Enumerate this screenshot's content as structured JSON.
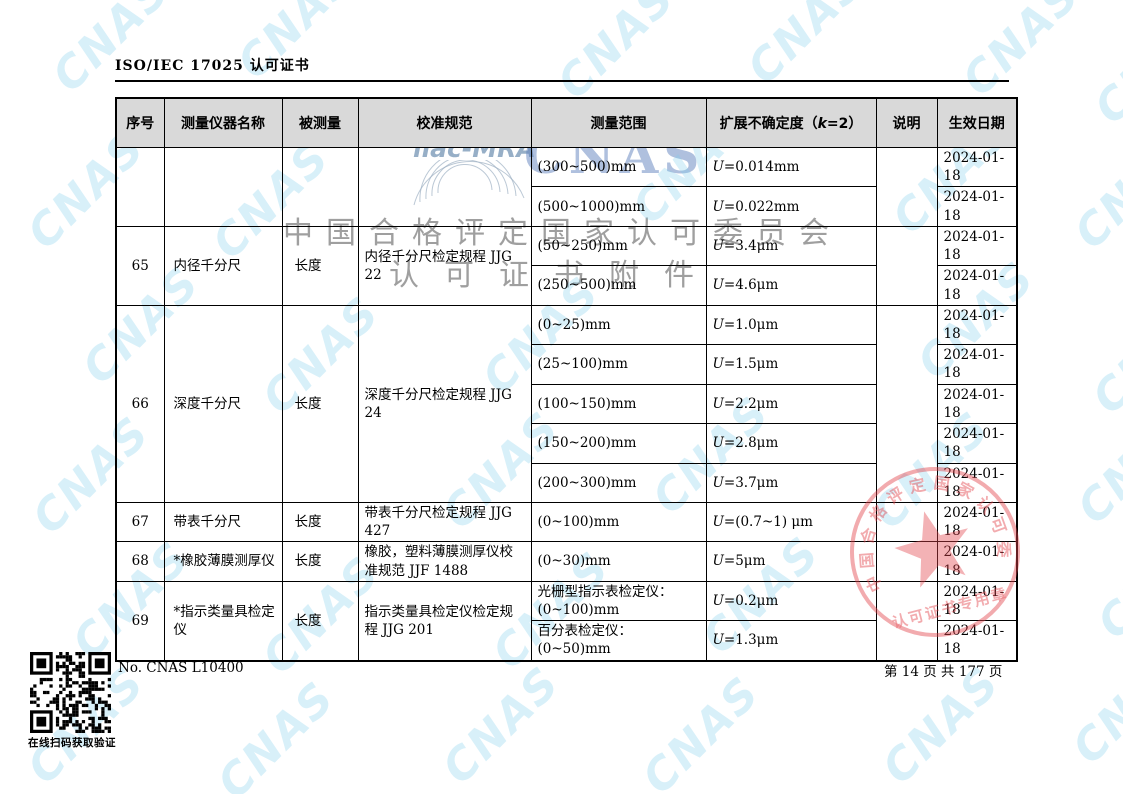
{
  "document": {
    "header_title": "ISO/IEC 17025 认可证书",
    "footer": {
      "cert_no": "No. CNAS L10400",
      "page_info": "第 14 页 共 177 页",
      "qr_caption": "在线扫码获取验证"
    }
  },
  "watermark": {
    "cnas_tile_text": "CNAS",
    "ilac_logo_text": "ilac-MRA",
    "center_cnas_text": "CNAS",
    "org_name_text": "中国合格评定国家认可委员会",
    "attachment_text": "认可证书附件",
    "tile_color": "#7dcdeb"
  },
  "seal": {
    "arc_text": "中国合格评定国家认可委员会",
    "bottom_text": "认可证书专用章",
    "color": "#e2444c"
  },
  "table": {
    "headers": [
      "序号",
      "测量仪器名称",
      "被测量",
      "校准规范",
      "测量范围",
      "扩展不确定度（k=2）",
      "说明",
      "生效日期"
    ],
    "groups": [
      {
        "no": "",
        "instrument": "",
        "quantity": "",
        "spec": "",
        "note": "",
        "rows": [
          {
            "range": "(300~500)mm",
            "uncertainty": "U=0.014mm",
            "date": "2024-01-18"
          },
          {
            "range": "(500~1000)mm",
            "uncertainty": "U=0.022mm",
            "date": "2024-01-18"
          }
        ]
      },
      {
        "no": "65",
        "instrument": "内径千分尺",
        "quantity": "长度",
        "spec": "内径千分尺检定规程 JJG 22",
        "note": "",
        "rows": [
          {
            "range": "(50~250)mm",
            "uncertainty": "U=3.4μm",
            "date": "2024-01-18"
          },
          {
            "range": "(250~500)mm",
            "uncertainty": "U=4.6μm",
            "date": "2024-01-18"
          }
        ]
      },
      {
        "no": "66",
        "instrument": "深度千分尺",
        "quantity": "长度",
        "spec": "深度千分尺检定规程 JJG 24",
        "note": "",
        "rows": [
          {
            "range": "(0~25)mm",
            "uncertainty": "U=1.0μm",
            "date": "2024-01-18"
          },
          {
            "range": "(25~100)mm",
            "uncertainty": "U=1.5μm",
            "date": "2024-01-18"
          },
          {
            "range": "(100~150)mm",
            "uncertainty": "U=2.2μm",
            "date": "2024-01-18"
          },
          {
            "range": "(150~200)mm",
            "uncertainty": "U=2.8μm",
            "date": "2024-01-18"
          },
          {
            "range": "(200~300)mm",
            "uncertainty": "U=3.7μm",
            "date": "2024-01-18"
          }
        ]
      },
      {
        "no": "67",
        "instrument": "带表千分尺",
        "quantity": "长度",
        "spec": "带表千分尺检定规程 JJG 427",
        "note": "",
        "rows": [
          {
            "range": "(0~100)mm",
            "uncertainty": "U=(0.7~1) μm",
            "date": "2024-01-18"
          }
        ]
      },
      {
        "no": "68",
        "instrument": "*橡胶薄膜测厚仪",
        "quantity": "长度",
        "spec": "橡胶，塑料薄膜测厚仪校准规范 JJF 1488",
        "note": "",
        "rows": [
          {
            "range": "(0~30)mm",
            "uncertainty": "U=5μm",
            "date": "2024-01-18"
          }
        ]
      },
      {
        "no": "69",
        "instrument": "*指示类量具检定仪",
        "quantity": "长度",
        "spec": "指示类量具检定仪检定规程 JJG 201",
        "note": "",
        "rows": [
          {
            "range": "光栅型指示表检定仪：(0~100)mm",
            "uncertainty": "U=0.2μm",
            "date": "2024-01-18"
          },
          {
            "range": "百分表检定仪：(0~50)mm",
            "uncertainty": "U=1.3μm",
            "date": "2024-01-18"
          }
        ]
      }
    ]
  }
}
